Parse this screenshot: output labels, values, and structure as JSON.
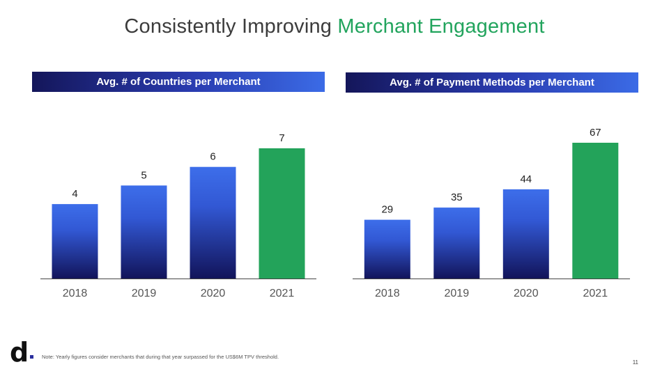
{
  "slide": {
    "title_prefix": "Consistently Improving ",
    "title_accent": "Merchant Engagement",
    "accent_color": "#22a45d",
    "note": "Note: Yearly figures consider merchants that during that year surpassed for the US$6M TPV threshold.",
    "page_number": "11",
    "logo_text": "d"
  },
  "chart_data": [
    {
      "type": "bar",
      "title": "Avg. # of Countries per Merchant",
      "categories": [
        "2018",
        "2019",
        "2020",
        "2021"
      ],
      "values": [
        4,
        5,
        6,
        7
      ],
      "ylim": [
        0,
        7
      ],
      "highlight_index": 3,
      "colors": {
        "bar_top": "#3d6eea",
        "bar_bottom": "#12145a",
        "highlight": "#23a35a",
        "axis": "#444444"
      },
      "grid": false,
      "legend": "none"
    },
    {
      "type": "bar",
      "title": "Avg. # of Payment Methods per Merchant",
      "categories": [
        "2018",
        "2019",
        "2020",
        "2021"
      ],
      "values": [
        29,
        35,
        44,
        67
      ],
      "ylim": [
        0,
        67
      ],
      "highlight_index": 3,
      "colors": {
        "bar_top": "#3d6eea",
        "bar_bottom": "#12145a",
        "highlight": "#23a35a",
        "axis": "#444444"
      },
      "grid": false,
      "legend": "none"
    }
  ]
}
